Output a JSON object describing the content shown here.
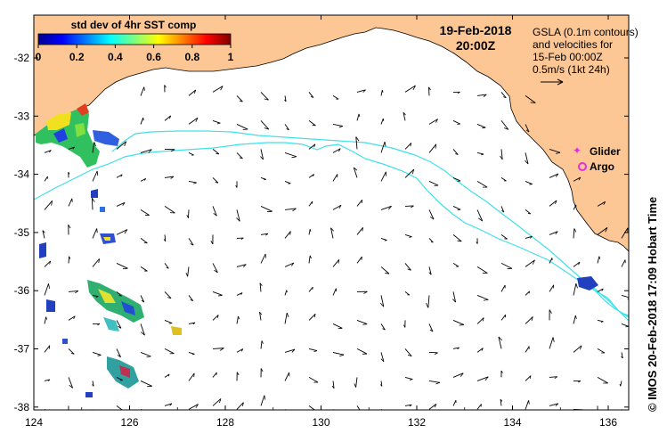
{
  "colorbar": {
    "title": "std dev of 4hr SST comp",
    "ticks": [
      "0",
      "0.2",
      "0.4",
      "0.6",
      "0.8",
      "1"
    ]
  },
  "header": {
    "date": "19-Feb-2018",
    "time": "20:00Z"
  },
  "info": {
    "line1": "GSLA (0.1m contours)",
    "line2": "and velocities for",
    "line3": "15-Feb 00:00Z",
    "line4": "0.5m/s (1kt 24h)"
  },
  "legend": {
    "glider_label": "Glider",
    "argo_label": "Argo",
    "glider_color": "#e030e0",
    "argo_color": "#e030e0"
  },
  "credit": "© IMOS 20-Feb-2018 17:09 Hobart Time",
  "axes": {
    "x_ticks": [
      "124",
      "126",
      "128",
      "130",
      "132",
      "134",
      "136"
    ],
    "y_ticks": [
      "-32",
      "-33",
      "-34",
      "-35",
      "-36",
      "-37",
      "-38"
    ]
  },
  "colors": {
    "land": "#fdc795",
    "contour": "#40e0e8",
    "ocean": "#ffffff"
  }
}
